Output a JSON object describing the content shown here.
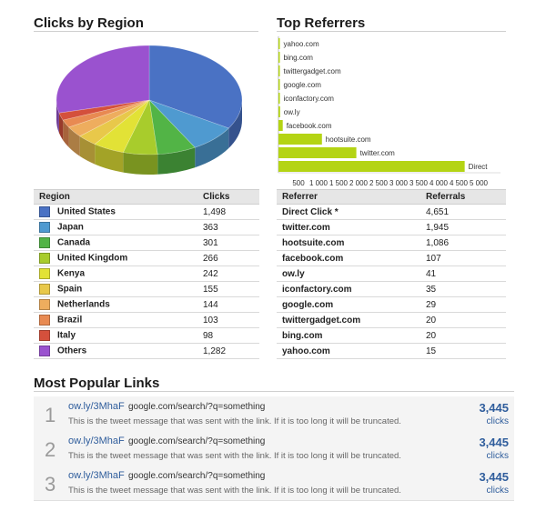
{
  "region_section": {
    "title": "Clicks by Region"
  },
  "referrer_section": {
    "title": "Top Referrers"
  },
  "popular_section": {
    "title": "Most Popular Links"
  },
  "region_table": {
    "col_region": "Region",
    "col_clicks": "Clicks",
    "rows": [
      {
        "region": "United States",
        "clicks": "1,498",
        "color": "#4a72c4"
      },
      {
        "region": "Japan",
        "clicks": "363",
        "color": "#4f9ad0"
      },
      {
        "region": "Canada",
        "clicks": "301",
        "color": "#52b446"
      },
      {
        "region": "United Kingdom",
        "clicks": "266",
        "color": "#a8cc2c"
      },
      {
        "region": "Kenya",
        "clicks": "242",
        "color": "#e2e236"
      },
      {
        "region": "Spain",
        "clicks": "155",
        "color": "#e8c84a"
      },
      {
        "region": "Netherlands",
        "clicks": "144",
        "color": "#eead5e"
      },
      {
        "region": "Brazil",
        "clicks": "103",
        "color": "#e88a52"
      },
      {
        "region": "Italy",
        "clicks": "98",
        "color": "#d4503c"
      },
      {
        "region": "Others",
        "clicks": "1,282",
        "color": "#9a52cf"
      }
    ]
  },
  "referrer_table": {
    "col_referrer": "Referrer",
    "col_referrals": "Referrals",
    "rows": [
      {
        "referrer": "Direct Click *",
        "referrals": "4,651"
      },
      {
        "referrer": "twitter.com",
        "referrals": "1,945"
      },
      {
        "referrer": "hootsuite.com",
        "referrals": "1,086"
      },
      {
        "referrer": "facebook.com",
        "referrals": "107"
      },
      {
        "referrer": "ow.ly",
        "referrals": "41"
      },
      {
        "referrer": "iconfactory.com",
        "referrals": "35"
      },
      {
        "referrer": "google.com",
        "referrals": "29"
      },
      {
        "referrer": "twittergadget.com",
        "referrals": "20"
      },
      {
        "referrer": "bing.com",
        "referrals": "20"
      },
      {
        "referrer": "yahoo.com",
        "referrals": "15"
      }
    ]
  },
  "popular_links": [
    {
      "rank": "1",
      "short_url": "ow.ly/3MhaF",
      "destination": "google.com/search/?q=something",
      "message": "This is the tweet message that was sent with the link. If it is too long it will be truncated.",
      "count": "3,445",
      "unit": "clicks"
    },
    {
      "rank": "2",
      "short_url": "ow.ly/3MhaF",
      "destination": "google.com/search/?q=something",
      "message": "This is the tweet message that was sent with the link. If it is too long it will be truncated.",
      "count": "3,445",
      "unit": "clicks"
    },
    {
      "rank": "3",
      "short_url": "ow.ly/3MhaF",
      "destination": "google.com/search/?q=something",
      "message": "This is the tweet message that was sent with the link. If it is too long it will be truncated.",
      "count": "3,445",
      "unit": "clicks"
    }
  ],
  "chart_data": [
    {
      "type": "pie",
      "title": "",
      "categories": [
        "United States",
        "Japan",
        "Canada",
        "United Kingdom",
        "Kenya",
        "Spain",
        "Netherlands",
        "Brazil",
        "Italy",
        "Others"
      ],
      "values": [
        1498,
        363,
        301,
        266,
        242,
        155,
        144,
        103,
        98,
        1282
      ],
      "colors": [
        "#4a72c4",
        "#4f9ad0",
        "#52b446",
        "#a8cc2c",
        "#e2e236",
        "#e8c84a",
        "#eead5e",
        "#e88a52",
        "#d4503c",
        "#9a52cf"
      ],
      "legend": "none"
    },
    {
      "type": "bar",
      "orientation": "horizontal",
      "title": "",
      "categories": [
        "yahoo.com",
        "bing.com",
        "twittergadget.com",
        "google.com",
        "iconfactory.com",
        "ow.ly",
        "facebook.com",
        "hootsuite.com",
        "twitter.com",
        "Direct"
      ],
      "values": [
        15,
        20,
        20,
        29,
        35,
        41,
        107,
        1086,
        1945,
        4651
      ],
      "xticks": [
        "500",
        "1 000",
        "1 500",
        "2 000",
        "2 500",
        "3 000",
        "3 500",
        "4 000",
        "4 500",
        "5 000"
      ],
      "xlim": [
        0,
        5000
      ],
      "bar_color": "#b4d414",
      "grid": false
    }
  ]
}
